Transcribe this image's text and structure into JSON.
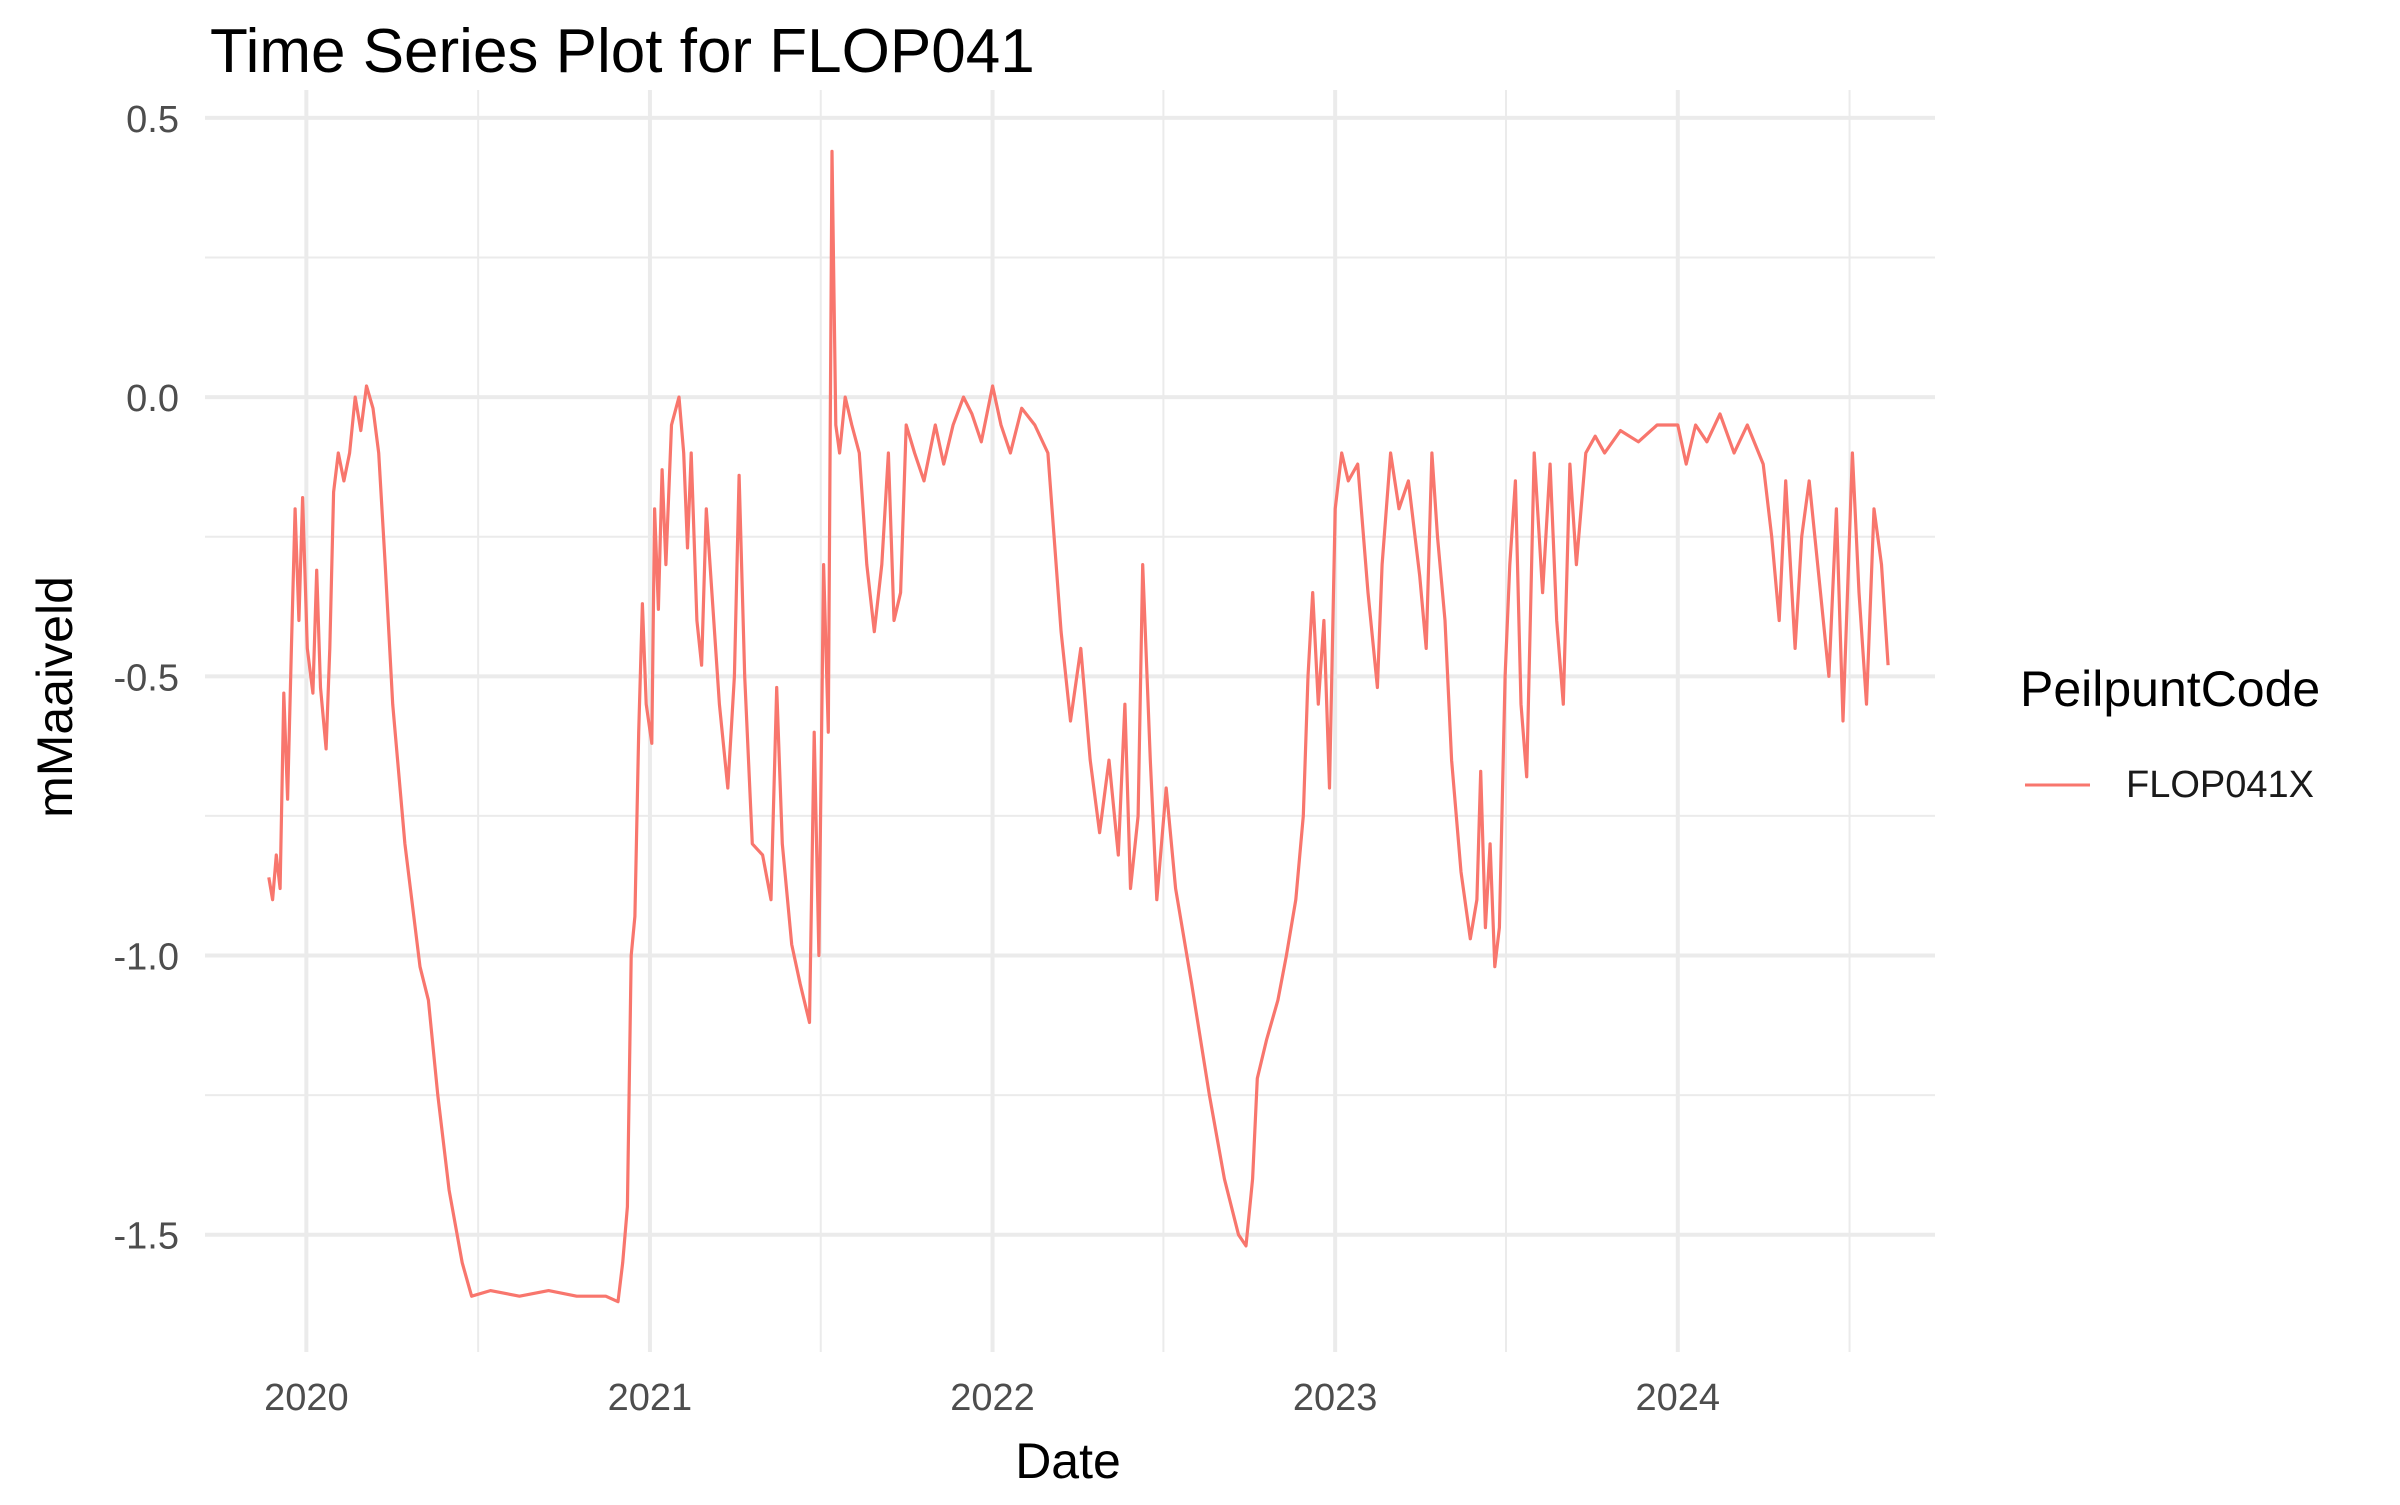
{
  "chart_data": {
    "type": "line",
    "title": "Time Series Plot for FLOP041",
    "xlabel": "Date",
    "ylabel": "mMaaiveld",
    "xlim": [
      "2019-09-15",
      "2024-10-01"
    ],
    "ylim": [
      -1.71,
      0.55
    ],
    "x_ticks": [
      "2020-01-01",
      "2021-01-01",
      "2022-01-01",
      "2023-01-01",
      "2024-01-01"
    ],
    "x_tick_labels": [
      "2020",
      "2021",
      "2022",
      "2023",
      "2024"
    ],
    "y_ticks": [
      0.5,
      0.0,
      -0.5,
      -1.0,
      -1.5
    ],
    "y_tick_labels": [
      "0.5",
      "0.0",
      "-0.5",
      "-1.0",
      "-1.5"
    ],
    "grid": true,
    "legend": {
      "title": "PeilpuntCode",
      "position": "right"
    },
    "series": [
      {
        "name": "FLOP041X",
        "color": "#F8766D",
        "points": [
          [
            "2019-11-22",
            -0.86
          ],
          [
            "2019-11-26",
            -0.9
          ],
          [
            "2019-11-30",
            -0.82
          ],
          [
            "2019-12-04",
            -0.88
          ],
          [
            "2019-12-08",
            -0.53
          ],
          [
            "2019-12-12",
            -0.72
          ],
          [
            "2019-12-16",
            -0.45
          ],
          [
            "2019-12-20",
            -0.2
          ],
          [
            "2019-12-24",
            -0.4
          ],
          [
            "2019-12-28",
            -0.18
          ],
          [
            "2020-01-02",
            -0.45
          ],
          [
            "2020-01-08",
            -0.53
          ],
          [
            "2020-01-12",
            -0.31
          ],
          [
            "2020-01-16",
            -0.52
          ],
          [
            "2020-01-22",
            -0.63
          ],
          [
            "2020-01-26",
            -0.45
          ],
          [
            "2020-01-30",
            -0.17
          ],
          [
            "2020-02-04",
            -0.1
          ],
          [
            "2020-02-10",
            -0.15
          ],
          [
            "2020-02-16",
            -0.1
          ],
          [
            "2020-02-22",
            0.0
          ],
          [
            "2020-02-28",
            -0.06
          ],
          [
            "2020-03-05",
            0.02
          ],
          [
            "2020-03-12",
            -0.02
          ],
          [
            "2020-03-18",
            -0.1
          ],
          [
            "2020-03-25",
            -0.3
          ],
          [
            "2020-04-02",
            -0.55
          ],
          [
            "2020-04-15",
            -0.8
          ],
          [
            "2020-05-01",
            -1.02
          ],
          [
            "2020-05-10",
            -1.08
          ],
          [
            "2020-05-20",
            -1.25
          ],
          [
            "2020-06-01",
            -1.42
          ],
          [
            "2020-06-15",
            -1.55
          ],
          [
            "2020-06-25",
            -1.61
          ],
          [
            "2020-07-15",
            -1.6
          ],
          [
            "2020-08-15",
            -1.61
          ],
          [
            "2020-09-15",
            -1.6
          ],
          [
            "2020-10-15",
            -1.61
          ],
          [
            "2020-11-15",
            -1.61
          ],
          [
            "2020-11-28",
            -1.62
          ],
          [
            "2020-12-03",
            -1.55
          ],
          [
            "2020-12-08",
            -1.45
          ],
          [
            "2020-12-12",
            -1.0
          ],
          [
            "2020-12-16",
            -0.93
          ],
          [
            "2020-12-20",
            -0.6
          ],
          [
            "2020-12-24",
            -0.37
          ],
          [
            "2020-12-28",
            -0.55
          ],
          [
            "2021-01-03",
            -0.62
          ],
          [
            "2021-01-06",
            -0.2
          ],
          [
            "2021-01-10",
            -0.38
          ],
          [
            "2021-01-14",
            -0.13
          ],
          [
            "2021-01-18",
            -0.3
          ],
          [
            "2021-01-24",
            -0.05
          ],
          [
            "2021-02-01",
            0.0
          ],
          [
            "2021-02-06",
            -0.1
          ],
          [
            "2021-02-10",
            -0.27
          ],
          [
            "2021-02-14",
            -0.1
          ],
          [
            "2021-02-20",
            -0.4
          ],
          [
            "2021-02-25",
            -0.48
          ],
          [
            "2021-03-02",
            -0.2
          ],
          [
            "2021-03-08",
            -0.35
          ],
          [
            "2021-03-16",
            -0.55
          ],
          [
            "2021-03-25",
            -0.7
          ],
          [
            "2021-04-01",
            -0.5
          ],
          [
            "2021-04-06",
            -0.14
          ],
          [
            "2021-04-12",
            -0.5
          ],
          [
            "2021-04-20",
            -0.8
          ],
          [
            "2021-05-01",
            -0.82
          ],
          [
            "2021-05-10",
            -0.9
          ],
          [
            "2021-05-16",
            -0.52
          ],
          [
            "2021-05-22",
            -0.8
          ],
          [
            "2021-06-01",
            -0.98
          ],
          [
            "2021-06-10",
            -1.05
          ],
          [
            "2021-06-20",
            -1.12
          ],
          [
            "2021-06-25",
            -0.6
          ],
          [
            "2021-06-30",
            -1.0
          ],
          [
            "2021-07-05",
            -0.3
          ],
          [
            "2021-07-10",
            -0.6
          ],
          [
            "2021-07-14",
            0.44
          ],
          [
            "2021-07-18",
            -0.05
          ],
          [
            "2021-07-22",
            -0.1
          ],
          [
            "2021-07-28",
            0.0
          ],
          [
            "2021-08-04",
            -0.05
          ],
          [
            "2021-08-12",
            -0.1
          ],
          [
            "2021-08-20",
            -0.3
          ],
          [
            "2021-08-28",
            -0.42
          ],
          [
            "2021-09-05",
            -0.3
          ],
          [
            "2021-09-12",
            -0.1
          ],
          [
            "2021-09-18",
            -0.4
          ],
          [
            "2021-09-25",
            -0.35
          ],
          [
            "2021-10-01",
            -0.05
          ],
          [
            "2021-10-10",
            -0.1
          ],
          [
            "2021-10-20",
            -0.15
          ],
          [
            "2021-11-01",
            -0.05
          ],
          [
            "2021-11-10",
            -0.12
          ],
          [
            "2021-11-20",
            -0.05
          ],
          [
            "2021-12-01",
            0.0
          ],
          [
            "2021-12-10",
            -0.03
          ],
          [
            "2021-12-20",
            -0.08
          ],
          [
            "2022-01-01",
            0.02
          ],
          [
            "2022-01-10",
            -0.05
          ],
          [
            "2022-01-20",
            -0.1
          ],
          [
            "2022-02-01",
            -0.02
          ],
          [
            "2022-02-15",
            -0.05
          ],
          [
            "2022-03-01",
            -0.1
          ],
          [
            "2022-03-15",
            -0.42
          ],
          [
            "2022-03-25",
            -0.58
          ],
          [
            "2022-04-05",
            -0.45
          ],
          [
            "2022-04-15",
            -0.65
          ],
          [
            "2022-04-25",
            -0.78
          ],
          [
            "2022-05-05",
            -0.65
          ],
          [
            "2022-05-15",
            -0.82
          ],
          [
            "2022-05-22",
            -0.55
          ],
          [
            "2022-05-28",
            -0.88
          ],
          [
            "2022-06-05",
            -0.75
          ],
          [
            "2022-06-10",
            -0.3
          ],
          [
            "2022-06-18",
            -0.65
          ],
          [
            "2022-06-25",
            -0.9
          ],
          [
            "2022-07-05",
            -0.7
          ],
          [
            "2022-07-15",
            -0.88
          ],
          [
            "2022-08-01",
            -1.05
          ],
          [
            "2022-08-20",
            -1.25
          ],
          [
            "2022-09-05",
            -1.4
          ],
          [
            "2022-09-20",
            -1.5
          ],
          [
            "2022-09-28",
            -1.52
          ],
          [
            "2022-10-05",
            -1.4
          ],
          [
            "2022-10-10",
            -1.22
          ],
          [
            "2022-10-20",
            -1.15
          ],
          [
            "2022-11-01",
            -1.08
          ],
          [
            "2022-11-10",
            -1.0
          ],
          [
            "2022-11-20",
            -0.9
          ],
          [
            "2022-11-28",
            -0.75
          ],
          [
            "2022-12-03",
            -0.5
          ],
          [
            "2022-12-08",
            -0.35
          ],
          [
            "2022-12-14",
            -0.55
          ],
          [
            "2022-12-20",
            -0.4
          ],
          [
            "2022-12-26",
            -0.7
          ],
          [
            "2023-01-01",
            -0.2
          ],
          [
            "2023-01-08",
            -0.1
          ],
          [
            "2023-01-15",
            -0.15
          ],
          [
            "2023-01-25",
            -0.12
          ],
          [
            "2023-02-05",
            -0.35
          ],
          [
            "2023-02-15",
            -0.52
          ],
          [
            "2023-02-20",
            -0.3
          ],
          [
            "2023-03-01",
            -0.1
          ],
          [
            "2023-03-10",
            -0.2
          ],
          [
            "2023-03-20",
            -0.15
          ],
          [
            "2023-04-01",
            -0.32
          ],
          [
            "2023-04-08",
            -0.45
          ],
          [
            "2023-04-14",
            -0.1
          ],
          [
            "2023-04-20",
            -0.25
          ],
          [
            "2023-04-28",
            -0.4
          ],
          [
            "2023-05-05",
            -0.65
          ],
          [
            "2023-05-15",
            -0.85
          ],
          [
            "2023-05-25",
            -0.97
          ],
          [
            "2023-06-01",
            -0.9
          ],
          [
            "2023-06-05",
            -0.67
          ],
          [
            "2023-06-10",
            -0.95
          ],
          [
            "2023-06-15",
            -0.8
          ],
          [
            "2023-06-20",
            -1.02
          ],
          [
            "2023-06-25",
            -0.95
          ],
          [
            "2023-07-01",
            -0.5
          ],
          [
            "2023-07-06",
            -0.3
          ],
          [
            "2023-07-12",
            -0.15
          ],
          [
            "2023-07-18",
            -0.55
          ],
          [
            "2023-07-24",
            -0.68
          ],
          [
            "2023-08-01",
            -0.1
          ],
          [
            "2023-08-10",
            -0.35
          ],
          [
            "2023-08-18",
            -0.12
          ],
          [
            "2023-08-25",
            -0.4
          ],
          [
            "2023-09-01",
            -0.55
          ],
          [
            "2023-09-08",
            -0.12
          ],
          [
            "2023-09-15",
            -0.3
          ],
          [
            "2023-09-25",
            -0.1
          ],
          [
            "2023-10-05",
            -0.07
          ],
          [
            "2023-10-15",
            -0.1
          ],
          [
            "2023-11-01",
            -0.06
          ],
          [
            "2023-11-20",
            -0.08
          ],
          [
            "2023-12-10",
            -0.05
          ],
          [
            "2024-01-01",
            -0.05
          ],
          [
            "2024-01-10",
            -0.12
          ],
          [
            "2024-01-20",
            -0.05
          ],
          [
            "2024-02-01",
            -0.08
          ],
          [
            "2024-02-15",
            -0.03
          ],
          [
            "2024-03-01",
            -0.1
          ],
          [
            "2024-03-15",
            -0.05
          ],
          [
            "2024-04-01",
            -0.12
          ],
          [
            "2024-04-10",
            -0.25
          ],
          [
            "2024-04-18",
            -0.4
          ],
          [
            "2024-04-25",
            -0.15
          ],
          [
            "2024-05-05",
            -0.45
          ],
          [
            "2024-05-12",
            -0.25
          ],
          [
            "2024-05-20",
            -0.15
          ],
          [
            "2024-06-01",
            -0.35
          ],
          [
            "2024-06-10",
            -0.5
          ],
          [
            "2024-06-18",
            -0.2
          ],
          [
            "2024-06-25",
            -0.58
          ],
          [
            "2024-07-05",
            -0.1
          ],
          [
            "2024-07-12",
            -0.35
          ],
          [
            "2024-07-20",
            -0.55
          ],
          [
            "2024-07-28",
            -0.2
          ],
          [
            "2024-08-05",
            -0.3
          ],
          [
            "2024-08-12",
            -0.48
          ]
        ]
      }
    ]
  }
}
